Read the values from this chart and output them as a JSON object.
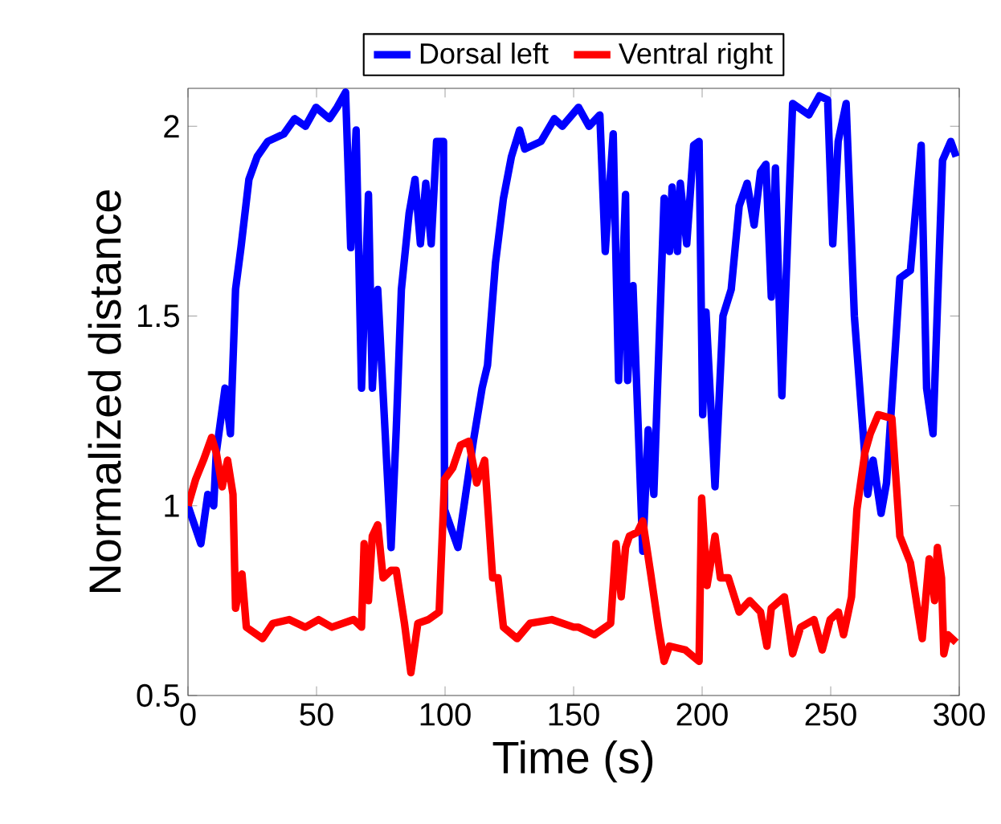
{
  "chart_data": {
    "type": "line",
    "xlabel": "Time (s)",
    "ylabel": "Normalized distance",
    "legend": "top",
    "line_style": "solid",
    "xlim": [
      0,
      300
    ],
    "ylim": [
      0.5,
      2.1
    ],
    "xticks": [
      0,
      50,
      100,
      150,
      200,
      250,
      300
    ],
    "yticks": [
      0.5,
      1,
      1.5,
      2
    ],
    "series": [
      {
        "name": "Dorsal left",
        "color": "#0000ff",
        "x": [
          0,
          2,
          5,
          7.7,
          10,
          11,
          14.4,
          16.5,
          18.5,
          20.6,
          23.7,
          26.9,
          31,
          37.3,
          41.5,
          45.7,
          49.8,
          55,
          58,
          61.3,
          63.3,
          65.4,
          67.5,
          70.2,
          71.7,
          73.8,
          79,
          81,
          83,
          86,
          88.3,
          90.4,
          92.5,
          94.6,
          96.7,
          99.4,
          99.8,
          105,
          108,
          111,
          114.4,
          116.5,
          119.6,
          122.7,
          125.8,
          129,
          131,
          137.3,
          142.5,
          145.6,
          151.9,
          156,
          160.2,
          162.3,
          165.4,
          167.5,
          170.2,
          171,
          173.1,
          176.9,
          179,
          181.2,
          185.2,
          187.3,
          188.3,
          190.4,
          191.5,
          194,
          196.7,
          198.8,
          200.2,
          201.5,
          205,
          208.1,
          211.3,
          214.4,
          217.5,
          220.2,
          222.7,
          224.8,
          226.9,
          228.5,
          231,
          235.2,
          241.5,
          245.6,
          248.8,
          250.8,
          252.9,
          256,
          259.2,
          261.3,
          264.4,
          266.5,
          269.6,
          271.7,
          276.9,
          281,
          285.2,
          287.3,
          289.8,
          293.5,
          296.7,
          298.8
        ],
        "values": [
          1.0,
          0.96,
          0.9,
          1.03,
          1.0,
          1.14,
          1.31,
          1.19,
          1.57,
          1.68,
          1.86,
          1.92,
          1.96,
          1.98,
          2.02,
          2.0,
          2.05,
          2.02,
          2.05,
          2.09,
          1.68,
          1.99,
          1.31,
          1.82,
          1.31,
          1.57,
          0.89,
          1.2,
          1.57,
          1.77,
          1.86,
          1.69,
          1.85,
          1.69,
          1.96,
          1.96,
          0.99,
          0.89,
          1.03,
          1.17,
          1.31,
          1.37,
          1.64,
          1.81,
          1.92,
          1.99,
          1.94,
          1.96,
          2.02,
          2.0,
          2.05,
          2.0,
          2.03,
          1.67,
          1.98,
          1.33,
          1.82,
          1.33,
          1.58,
          0.88,
          1.2,
          1.03,
          1.81,
          1.67,
          1.84,
          1.67,
          1.85,
          1.69,
          1.95,
          1.96,
          1.24,
          1.51,
          1.05,
          1.5,
          1.57,
          1.79,
          1.85,
          1.74,
          1.88,
          1.9,
          1.55,
          1.89,
          1.29,
          2.06,
          2.03,
          2.08,
          2.07,
          1.69,
          1.96,
          2.06,
          1.5,
          1.31,
          1.03,
          1.12,
          0.98,
          1.06,
          1.6,
          1.62,
          1.95,
          1.31,
          1.19,
          1.91,
          1.96,
          1.92
        ]
      },
      {
        "name": "Ventral right",
        "color": "#ff0000",
        "x": [
          0,
          3,
          6,
          9.2,
          11,
          13.3,
          15.4,
          17.5,
          18.5,
          21,
          22.7,
          29,
          33,
          39.4,
          45.6,
          50.8,
          56,
          64.4,
          67.5,
          68.5,
          70.2,
          71.7,
          73.8,
          75.9,
          79,
          81,
          84.2,
          86.7,
          89.4,
          93.5,
          97.7,
          99.8,
          103,
          106,
          109.2,
          112.3,
          115.4,
          118.5,
          120.6,
          122.7,
          128,
          133,
          141.5,
          150,
          151.9,
          158.1,
          164.4,
          166.5,
          168.5,
          170.2,
          171.7,
          174.8,
          176.9,
          180,
          183,
          185.2,
          187.3,
          193.5,
          198.8,
          199.8,
          201.9,
          205,
          207.1,
          210.2,
          214.4,
          218.5,
          222.7,
          225.2,
          226.9,
          232,
          235.2,
          238.3,
          243.5,
          246.7,
          249.8,
          253,
          255,
          258.1,
          260.2,
          263.3,
          265.4,
          268.5,
          273.8,
          276.9,
          281,
          285.6,
          288.3,
          290.4,
          291.5,
          293.1,
          294,
          295.6,
          298.8
        ],
        "values": [
          1.0,
          1.07,
          1.12,
          1.18,
          1.14,
          1.05,
          1.12,
          1.03,
          0.73,
          0.82,
          0.68,
          0.65,
          0.69,
          0.7,
          0.68,
          0.7,
          0.68,
          0.7,
          0.68,
          0.9,
          0.75,
          0.92,
          0.95,
          0.81,
          0.83,
          0.83,
          0.69,
          0.56,
          0.69,
          0.7,
          0.72,
          1.07,
          1.1,
          1.16,
          1.17,
          1.06,
          1.12,
          0.81,
          0.81,
          0.68,
          0.65,
          0.69,
          0.7,
          0.68,
          0.68,
          0.66,
          0.69,
          0.9,
          0.76,
          0.89,
          0.92,
          0.93,
          0.96,
          0.82,
          0.68,
          0.59,
          0.63,
          0.62,
          0.59,
          1.02,
          0.79,
          0.92,
          0.81,
          0.81,
          0.72,
          0.75,
          0.72,
          0.63,
          0.73,
          0.76,
          0.61,
          0.68,
          0.7,
          0.62,
          0.7,
          0.72,
          0.66,
          0.76,
          0.99,
          1.14,
          1.19,
          1.24,
          1.23,
          0.92,
          0.85,
          0.65,
          0.86,
          0.75,
          0.89,
          0.81,
          0.61,
          0.66,
          0.64
        ]
      }
    ]
  }
}
